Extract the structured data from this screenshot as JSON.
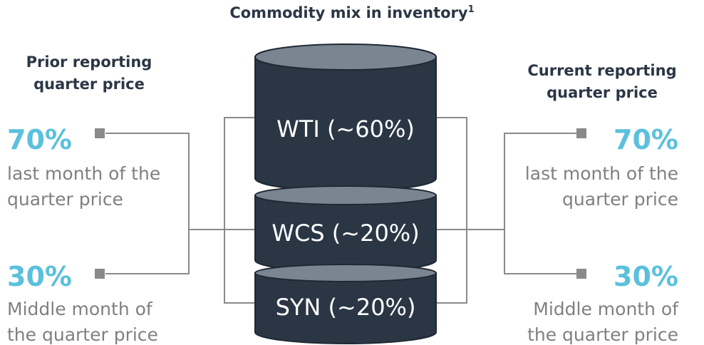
{
  "title": "Commodity mix in inventory",
  "title_footnote": "1",
  "left": {
    "header": "Prior reporting quarter price",
    "items": [
      {
        "percent": "70%",
        "description": "last month of the quarter price"
      },
      {
        "percent": "30%",
        "description": "Middle month of the quarter price"
      }
    ]
  },
  "right": {
    "header": "Current reporting quarter price",
    "items": [
      {
        "percent": "70%",
        "description": "last month of the quarter price"
      },
      {
        "percent": "30%",
        "description": "Middle month of the quarter price"
      }
    ]
  },
  "cylinders": [
    {
      "label": "WTI (~60%)"
    },
    {
      "label": "WCS (~20%)"
    },
    {
      "label": "SYN (~20%)"
    }
  ]
}
